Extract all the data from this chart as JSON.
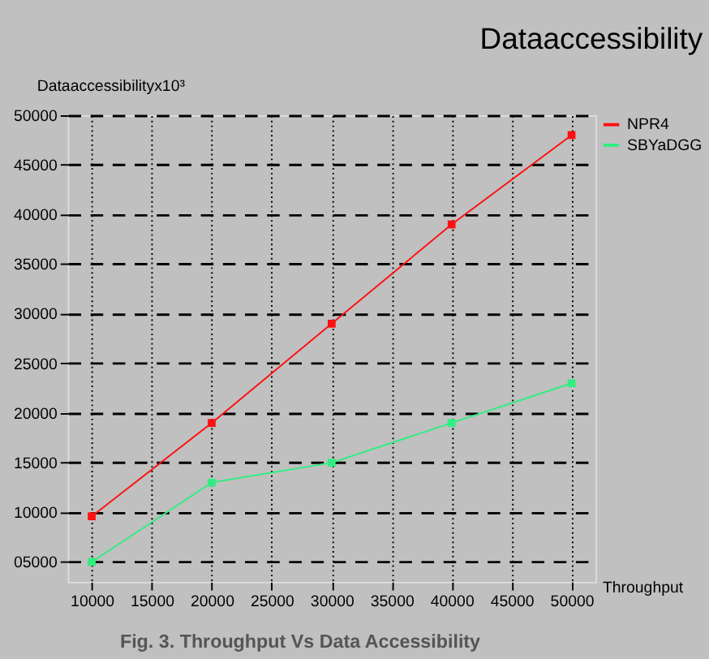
{
  "chart_data": {
    "type": "line",
    "title": "Dataaccessibility",
    "xlabel": "Throughput",
    "ylabel": "Dataaccessibilityx10³",
    "x": [
      10000,
      20000,
      30000,
      40000,
      50000
    ],
    "series": [
      {
        "name": "NPR4",
        "color": "#ff1010",
        "values": [
          9600,
          19000,
          29000,
          39000,
          48000
        ]
      },
      {
        "name": "SBYaDGG",
        "color": "#30ee80",
        "values": [
          5000,
          13000,
          15000,
          19000,
          23000
        ]
      }
    ],
    "xlim": [
      8000,
      52000
    ],
    "xticks": [
      10000,
      15000,
      20000,
      25000,
      30000,
      35000,
      40000,
      45000,
      50000
    ],
    "ylim": [
      3000,
      50000
    ],
    "yticks": [
      {
        "value": 5000,
        "label": "05000"
      },
      10000,
      15000,
      20000,
      25000,
      30000,
      35000,
      40000,
      45000,
      50000
    ],
    "grid": true,
    "legend": "top right",
    "marker": "square",
    "line_style": "solid",
    "annotations": [
      "Fig. 3. Throughput Vs Data Accessibility"
    ]
  }
}
